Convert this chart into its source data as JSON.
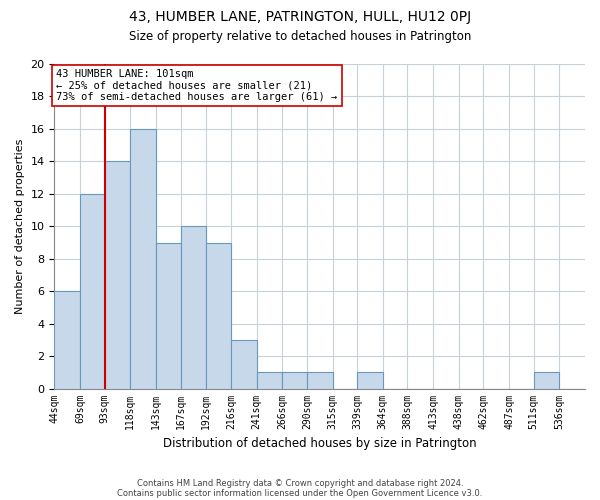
{
  "title": "43, HUMBER LANE, PATRINGTON, HULL, HU12 0PJ",
  "subtitle": "Size of property relative to detached houses in Patrington",
  "xlabel": "Distribution of detached houses by size in Patrington",
  "ylabel": "Number of detached properties",
  "bin_labels": [
    "44sqm",
    "69sqm",
    "93sqm",
    "118sqm",
    "143sqm",
    "167sqm",
    "192sqm",
    "216sqm",
    "241sqm",
    "266sqm",
    "290sqm",
    "315sqm",
    "339sqm",
    "364sqm",
    "388sqm",
    "413sqm",
    "438sqm",
    "462sqm",
    "487sqm",
    "511sqm",
    "536sqm"
  ],
  "bar_heights": [
    6,
    12,
    14,
    16,
    9,
    10,
    9,
    3,
    1,
    1,
    1,
    0,
    1,
    0,
    0,
    0,
    0,
    0,
    0,
    1,
    0
  ],
  "bar_color": "#c8d8eb",
  "bar_edge_color": "#6699bb",
  "vline_x_index": 2,
  "vline_color": "#cc0000",
  "ylim": [
    0,
    20
  ],
  "yticks": [
    0,
    2,
    4,
    6,
    8,
    10,
    12,
    14,
    16,
    18,
    20
  ],
  "annotation_line1": "43 HUMBER LANE: 101sqm",
  "annotation_line2": "← 25% of detached houses are smaller (21)",
  "annotation_line3": "73% of semi-detached houses are larger (61) →",
  "annotation_box_color": "#ffffff",
  "annotation_box_edge": "#cc0000",
  "footnote1": "Contains HM Land Registry data © Crown copyright and database right 2024.",
  "footnote2": "Contains public sector information licensed under the Open Government Licence v3.0.",
  "bin_edges": [
    44,
    69,
    93,
    118,
    143,
    167,
    192,
    216,
    241,
    266,
    290,
    315,
    339,
    364,
    388,
    413,
    438,
    462,
    487,
    511,
    536,
    561
  ],
  "vline_x": 93
}
